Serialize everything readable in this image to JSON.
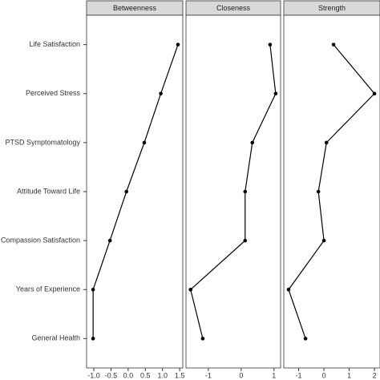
{
  "chart_data": [
    {
      "type": "line",
      "title": "Betweenness",
      "categories": [
        "Life Satisfaction",
        "Perceived Stress",
        "PTSD Symptomatology",
        "Attitude Toward Life",
        "Compassion Satisfaction",
        "Years of Experience",
        "General Health"
      ],
      "values": [
        1.45,
        0.95,
        0.47,
        -0.05,
        -0.53,
        -1.02,
        -1.02
      ],
      "xlim": [
        -1.21,
        1.59
      ],
      "xticks": [
        {
          "value": -1,
          "label": "-1.0"
        },
        -0.5,
        {
          "value": 0,
          "label": "0.0"
        },
        0.5,
        {
          "value": 1,
          "label": "1.0"
        },
        1.5
      ],
      "color": "#000000"
    },
    {
      "type": "line",
      "title": "Closeness",
      "values": [
        0.88,
        1.05,
        0.34,
        0.12,
        0.12,
        -1.54,
        -1.17
      ],
      "xlim": [
        -1.68,
        1.2
      ],
      "xticks": [
        -1,
        0,
        1
      ],
      "color": "#000000"
    },
    {
      "type": "line",
      "title": "Strength",
      "values": [
        0.38,
        2.0,
        0.1,
        -0.22,
        0,
        -1.4,
        -0.73
      ],
      "xlim": [
        -1.59,
        2.22
      ],
      "xticks": [
        -1,
        0,
        1,
        2
      ],
      "color": "#000000"
    }
  ]
}
